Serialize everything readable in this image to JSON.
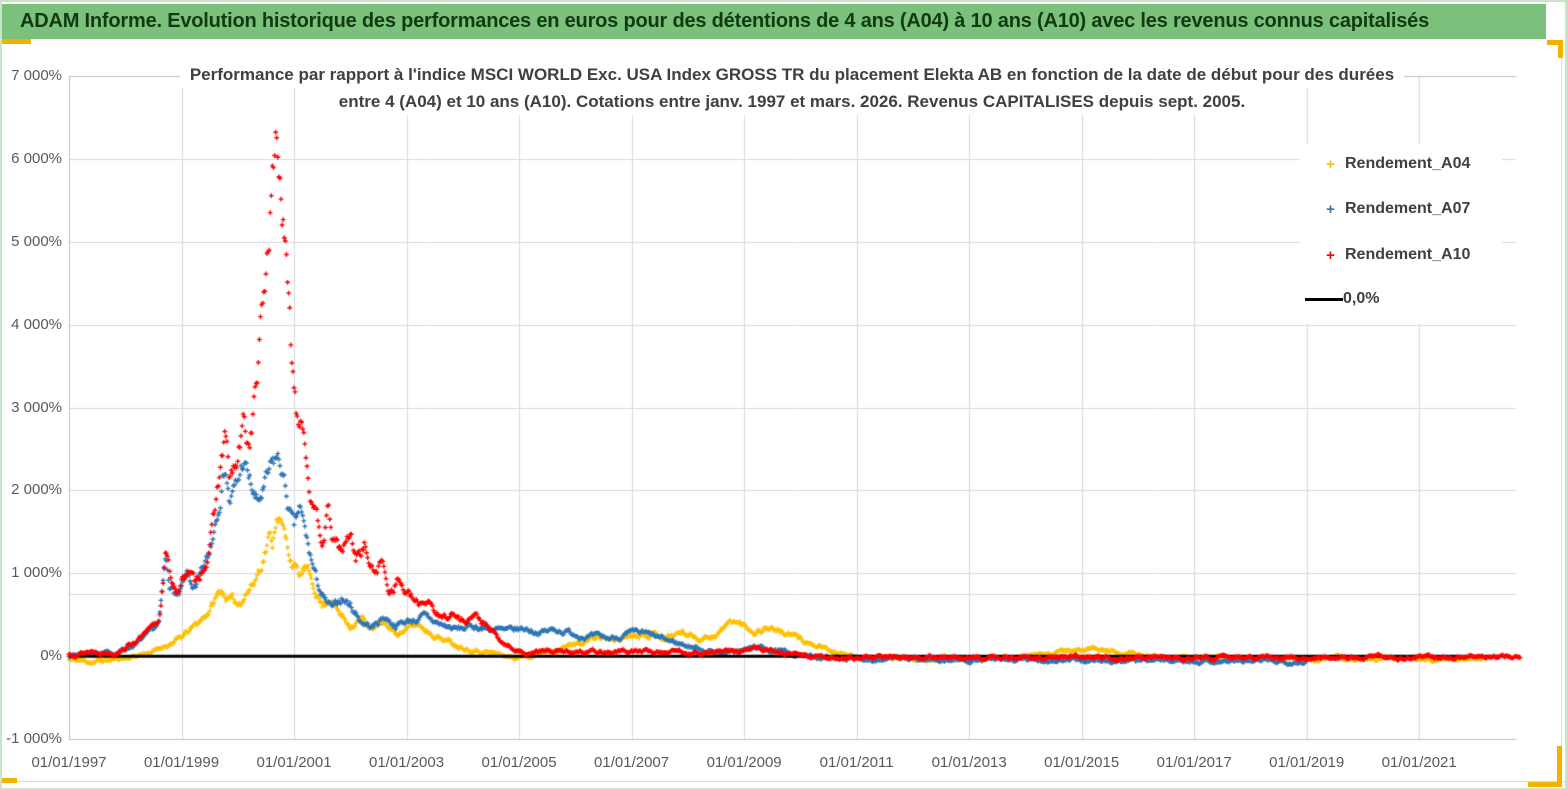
{
  "header": {
    "title": "ADAM Informe. Evolution historique des performances en euros pour des détentions de 4 ans (A04) à 10 ans (A10) avec les revenus connus capitalisés",
    "bg_color": "#7bc17b",
    "text_color": "#123a12"
  },
  "selection_color": "#f2b200",
  "chart_data": {
    "type": "scatter",
    "title_line1": "Performance par rapport à l'indice MSCI WORLD Exc. USA Index GROSS TR  du placement Elekta AB en fonction de la date de début pour des durées",
    "title_line2": "entre 4 (A04) et 10 ans (A10). Cotations entre janv. 1997 et mars. 2026. Revenus CAPITALISES depuis sept. 2005.",
    "grid": {
      "color": "#d9d9d9",
      "border_color": "#bfbfbf",
      "extra_hline_value": 750
    },
    "x_axis": {
      "labels": [
        "01/01/1997",
        "01/01/1999",
        "01/01/2001",
        "01/01/2003",
        "01/01/2005",
        "01/01/2007",
        "01/01/2009",
        "01/01/2011",
        "01/01/2013",
        "01/01/2015",
        "01/01/2017",
        "01/01/2019",
        "01/01/2021"
      ],
      "tick_years": [
        1997,
        1999,
        2001,
        2003,
        2005,
        2007,
        2009,
        2011,
        2013,
        2015,
        2017,
        2019,
        2021
      ],
      "min_year": 1997,
      "max_year": 2022.72
    },
    "y_axis": {
      "labels": [
        "7 000%",
        "6 000%",
        "5 000%",
        "4 000%",
        "3 000%",
        "2 000%",
        "1 000%",
        "0%",
        "-1 000%"
      ],
      "tick_values": [
        7000,
        6000,
        5000,
        4000,
        3000,
        2000,
        1000,
        0,
        -1000
      ],
      "min": -1000,
      "max": 7000
    },
    "legend": [
      {
        "label": "Rendement_A04",
        "color": "#FFC000",
        "marker": "plus"
      },
      {
        "label": "Rendement_A07",
        "color": "#2E75B6",
        "marker": "plus"
      },
      {
        "label": "Rendement_A10",
        "color": "#FF0000",
        "marker": "plus"
      },
      {
        "label": "0,0%",
        "color": "#000000",
        "marker": "line"
      }
    ],
    "zero_line": {
      "value": 0,
      "color": "#000000",
      "start_year": 1997.0,
      "end_year": 2022.6
    },
    "series": [
      {
        "name": "Rendement_A04",
        "color": "#FFC000",
        "seed": 11,
        "noise_base": 30,
        "noise_rel": 0.09,
        "anchors": [
          [
            1997.0,
            -40
          ],
          [
            1997.4,
            -70
          ],
          [
            1997.8,
            -40
          ],
          [
            1998.1,
            -10
          ],
          [
            1998.4,
            40
          ],
          [
            1998.6,
            80
          ],
          [
            1998.75,
            140
          ],
          [
            1999.0,
            220
          ],
          [
            1999.3,
            400
          ],
          [
            1999.5,
            560
          ],
          [
            1999.7,
            800
          ],
          [
            1999.85,
            680
          ],
          [
            2000.0,
            620
          ],
          [
            2000.15,
            780
          ],
          [
            2000.3,
            900
          ],
          [
            2000.45,
            1200
          ],
          [
            2000.55,
            1450
          ],
          [
            2000.62,
            1350
          ],
          [
            2000.7,
            1800
          ],
          [
            2000.78,
            1600
          ],
          [
            2000.9,
            1250
          ],
          [
            2001.0,
            1100
          ],
          [
            2001.1,
            950
          ],
          [
            2001.2,
            1050
          ],
          [
            2001.35,
            850
          ],
          [
            2001.5,
            620
          ],
          [
            2001.65,
            720
          ],
          [
            2001.8,
            520
          ],
          [
            2002.0,
            380
          ],
          [
            2002.2,
            450
          ],
          [
            2002.4,
            320
          ],
          [
            2002.6,
            400
          ],
          [
            2002.8,
            280
          ],
          [
            2003.0,
            320
          ],
          [
            2003.2,
            380
          ],
          [
            2003.5,
            260
          ],
          [
            2003.8,
            160
          ],
          [
            2004.0,
            110
          ],
          [
            2004.3,
            70
          ],
          [
            2004.6,
            30
          ],
          [
            2004.9,
            -20
          ],
          [
            2005.2,
            10
          ],
          [
            2005.5,
            70
          ],
          [
            2005.8,
            110
          ],
          [
            2006.1,
            170
          ],
          [
            2006.4,
            230
          ],
          [
            2006.7,
            190
          ],
          [
            2007.0,
            260
          ],
          [
            2007.3,
            290
          ],
          [
            2007.6,
            230
          ],
          [
            2007.9,
            290
          ],
          [
            2008.2,
            220
          ],
          [
            2008.5,
            260
          ],
          [
            2008.8,
            430
          ],
          [
            2009.0,
            360
          ],
          [
            2009.2,
            300
          ],
          [
            2009.45,
            360
          ],
          [
            2009.7,
            280
          ],
          [
            2010.0,
            210
          ],
          [
            2010.3,
            110
          ],
          [
            2010.6,
            40
          ],
          [
            2011.0,
            -10
          ],
          [
            2011.5,
            -30
          ],
          [
            2012.0,
            -25
          ],
          [
            2013.0,
            -30
          ],
          [
            2014.0,
            -20
          ],
          [
            2014.7,
            50
          ],
          [
            2015.2,
            90
          ],
          [
            2015.7,
            40
          ],
          [
            2016.2,
            0
          ],
          [
            2017.0,
            -25
          ],
          [
            2018.0,
            -30
          ],
          [
            2019.0,
            -35
          ],
          [
            2020.0,
            -30
          ],
          [
            2021.0,
            -35
          ],
          [
            2022.1,
            -30
          ]
        ]
      },
      {
        "name": "Rendement_A07",
        "color": "#2E75B6",
        "seed": 7,
        "noise_base": 30,
        "noise_rel": 0.09,
        "anchors": [
          [
            1997.0,
            10
          ],
          [
            1997.4,
            40
          ],
          [
            1997.8,
            30
          ],
          [
            1998.1,
            120
          ],
          [
            1998.4,
            240
          ],
          [
            1998.6,
            380
          ],
          [
            1998.72,
            1150
          ],
          [
            1998.8,
            850
          ],
          [
            1998.95,
            700
          ],
          [
            1999.1,
            950
          ],
          [
            1999.25,
            780
          ],
          [
            1999.5,
            1200
          ],
          [
            1999.7,
            2100
          ],
          [
            1999.78,
            2400
          ],
          [
            1999.85,
            1900
          ],
          [
            2000.0,
            2050
          ],
          [
            2000.1,
            2350
          ],
          [
            2000.2,
            2100
          ],
          [
            2000.35,
            1800
          ],
          [
            2000.5,
            2050
          ],
          [
            2000.6,
            2200
          ],
          [
            2000.68,
            2350
          ],
          [
            2000.78,
            2250
          ],
          [
            2000.9,
            1800
          ],
          [
            2001.0,
            1500
          ],
          [
            2001.1,
            1750
          ],
          [
            2001.25,
            1300
          ],
          [
            2001.4,
            900
          ],
          [
            2001.55,
            650
          ],
          [
            2001.7,
            550
          ],
          [
            2001.85,
            700
          ],
          [
            2002.0,
            620
          ],
          [
            2002.2,
            420
          ],
          [
            2002.4,
            350
          ],
          [
            2002.6,
            480
          ],
          [
            2002.8,
            380
          ],
          [
            2003.0,
            420
          ],
          [
            2003.3,
            470
          ],
          [
            2003.6,
            380
          ],
          [
            2003.9,
            320
          ],
          [
            2004.2,
            360
          ],
          [
            2004.5,
            330
          ],
          [
            2004.8,
            290
          ],
          [
            2005.1,
            330
          ],
          [
            2005.4,
            290
          ],
          [
            2005.7,
            320
          ],
          [
            2006.0,
            270
          ],
          [
            2006.3,
            230
          ],
          [
            2006.6,
            210
          ],
          [
            2006.9,
            260
          ],
          [
            2007.2,
            270
          ],
          [
            2007.5,
            210
          ],
          [
            2007.8,
            160
          ],
          [
            2008.1,
            110
          ],
          [
            2008.4,
            60
          ],
          [
            2008.7,
            40
          ],
          [
            2009.0,
            70
          ],
          [
            2009.2,
            110
          ],
          [
            2009.5,
            70
          ],
          [
            2009.8,
            30
          ],
          [
            2010.2,
            -10
          ],
          [
            2010.8,
            -25
          ],
          [
            2011.5,
            -35
          ],
          [
            2012.5,
            -45
          ],
          [
            2013.5,
            -50
          ],
          [
            2014.5,
            -50
          ],
          [
            2015.5,
            -60
          ],
          [
            2016.5,
            -55
          ],
          [
            2017.5,
            -60
          ],
          [
            2018.5,
            -65
          ],
          [
            2019.0,
            -60
          ]
        ]
      },
      {
        "name": "Rendement_A10",
        "color": "#FF0000",
        "seed": 13,
        "noise_base": 30,
        "noise_rel": 0.09,
        "anchors": [
          [
            1997.0,
            20
          ],
          [
            1997.4,
            60
          ],
          [
            1997.8,
            40
          ],
          [
            1998.1,
            150
          ],
          [
            1998.4,
            280
          ],
          [
            1998.6,
            420
          ],
          [
            1998.72,
            1280
          ],
          [
            1998.8,
            950
          ],
          [
            1998.95,
            780
          ],
          [
            1999.1,
            1050
          ],
          [
            1999.25,
            850
          ],
          [
            1999.5,
            1300
          ],
          [
            1999.7,
            2300
          ],
          [
            1999.78,
            2650
          ],
          [
            1999.85,
            2100
          ],
          [
            2000.0,
            2300
          ],
          [
            2000.1,
            2750
          ],
          [
            2000.2,
            2500
          ],
          [
            2000.35,
            3400
          ],
          [
            2000.5,
            4600
          ],
          [
            2000.6,
            5600
          ],
          [
            2000.68,
            6300
          ],
          [
            2000.75,
            5900
          ],
          [
            2000.85,
            4800
          ],
          [
            2000.95,
            3600
          ],
          [
            2001.05,
            2950
          ],
          [
            2001.15,
            3000
          ],
          [
            2001.25,
            2300
          ],
          [
            2001.35,
            1700
          ],
          [
            2001.5,
            1400
          ],
          [
            2001.6,
            1750
          ],
          [
            2001.7,
            1350
          ],
          [
            2001.85,
            1250
          ],
          [
            2002.0,
            1450
          ],
          [
            2002.1,
            1200
          ],
          [
            2002.25,
            1350
          ],
          [
            2002.4,
            1000
          ],
          [
            2002.55,
            1150
          ],
          [
            2002.7,
            800
          ],
          [
            2002.85,
            950
          ],
          [
            2003.0,
            750
          ],
          [
            2003.2,
            600
          ],
          [
            2003.4,
            700
          ],
          [
            2003.6,
            450
          ],
          [
            2003.8,
            520
          ],
          [
            2004.0,
            420
          ],
          [
            2004.2,
            500
          ],
          [
            2004.35,
            400
          ],
          [
            2004.5,
            300
          ],
          [
            2004.7,
            150
          ],
          [
            2004.9,
            80
          ],
          [
            2005.1,
            40
          ],
          [
            2005.4,
            60
          ],
          [
            2005.8,
            50
          ],
          [
            2006.2,
            70
          ],
          [
            2006.6,
            50
          ],
          [
            2007.0,
            60
          ],
          [
            2007.4,
            50
          ],
          [
            2007.8,
            60
          ],
          [
            2008.2,
            40
          ],
          [
            2008.6,
            50
          ],
          [
            2009.0,
            60
          ],
          [
            2009.2,
            100
          ],
          [
            2009.4,
            60
          ],
          [
            2009.7,
            30
          ],
          [
            2010.0,
            0
          ],
          [
            2010.5,
            -15
          ],
          [
            2011.0,
            -20
          ],
          [
            2012.0,
            -15
          ],
          [
            2013.0,
            -20
          ],
          [
            2014.0,
            -15
          ],
          [
            2015.0,
            -20
          ],
          [
            2016.0,
            -15
          ],
          [
            2017.0,
            -20
          ],
          [
            2018.0,
            -15
          ],
          [
            2019.0,
            -20
          ],
          [
            2020.0,
            -10
          ],
          [
            2021.0,
            -15
          ],
          [
            2022.0,
            -10
          ],
          [
            2022.8,
            -10
          ]
        ]
      }
    ]
  }
}
